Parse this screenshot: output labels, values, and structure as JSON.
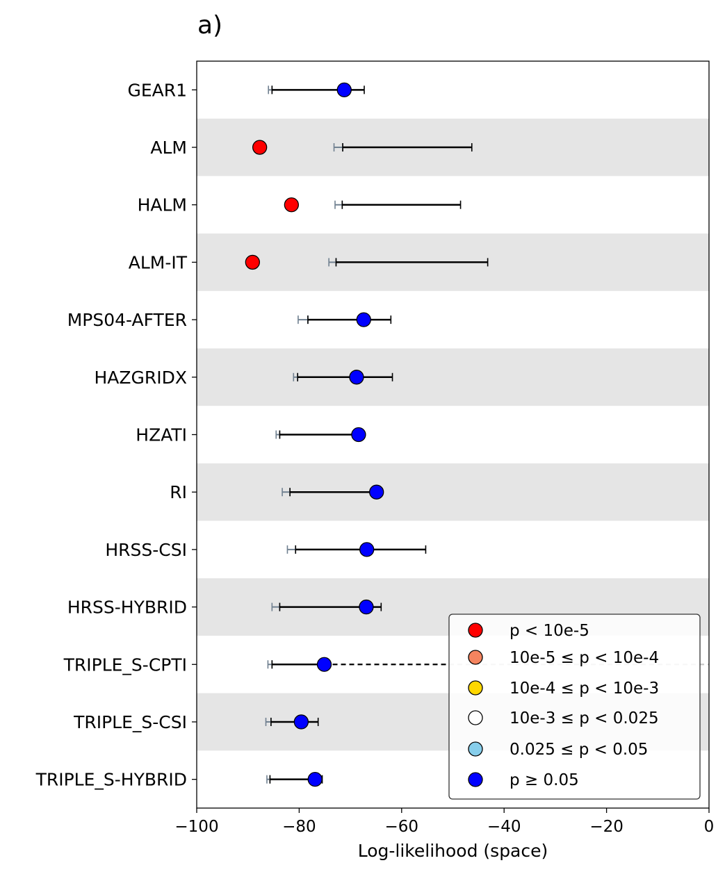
{
  "panel_label": "a)",
  "chart_data": {
    "type": "scatter",
    "xlabel": "Log-likelihood (space)",
    "xlim": [
      -100,
      0
    ],
    "xticks": [
      -100,
      -80,
      -60,
      -40,
      -20,
      0
    ],
    "xtick_labels": [
      "−100",
      "−80",
      "−60",
      "−40",
      "−20",
      "0"
    ],
    "grid": false,
    "alternating_row_shading": "#e5e5e5",
    "legend_position": "lower-right",
    "models": [
      {
        "name": "GEAR1",
        "observed": -71.2,
        "sim_low": -85.3,
        "sim_high": -67.3,
        "lower_bar_start": -86.0,
        "color_class": "p >= 0.05",
        "dashed_extension": false
      },
      {
        "name": "ALM",
        "observed": -87.7,
        "sim_low": -71.5,
        "sim_high": -46.3,
        "lower_bar_start": -73.2,
        "color_class": "p < 10e-5",
        "dashed_extension": false
      },
      {
        "name": "HALM",
        "observed": -81.5,
        "sim_low": -71.6,
        "sim_high": -48.5,
        "lower_bar_start": -73.0,
        "color_class": "p < 10e-5",
        "dashed_extension": false
      },
      {
        "name": "ALM-IT",
        "observed": -89.1,
        "sim_low": -72.8,
        "sim_high": -43.2,
        "lower_bar_start": -74.2,
        "color_class": "p < 10e-5",
        "dashed_extension": false
      },
      {
        "name": "MPS04-AFTER",
        "observed": -67.4,
        "sim_low": -78.3,
        "sim_high": -62.1,
        "lower_bar_start": -80.2,
        "color_class": "p >= 0.05",
        "dashed_extension": false
      },
      {
        "name": "HAZGRIDX",
        "observed": -68.8,
        "sim_low": -80.3,
        "sim_high": -61.8,
        "lower_bar_start": -81.1,
        "color_class": "p >= 0.05",
        "dashed_extension": false
      },
      {
        "name": "HZATI",
        "observed": -68.4,
        "sim_low": -83.8,
        "sim_high": -68.4,
        "lower_bar_start": -84.5,
        "color_class": "p >= 0.05",
        "dashed_extension": false
      },
      {
        "name": "RI",
        "observed": -64.9,
        "sim_low": -81.8,
        "sim_high": -64.9,
        "lower_bar_start": -83.3,
        "color_class": "p >= 0.05",
        "dashed_extension": false
      },
      {
        "name": "HRSS-CSI",
        "observed": -66.8,
        "sim_low": -80.7,
        "sim_high": -55.3,
        "lower_bar_start": -82.3,
        "color_class": "p >= 0.05",
        "dashed_extension": false
      },
      {
        "name": "HRSS-HYBRID",
        "observed": -66.9,
        "sim_low": -83.8,
        "sim_high": -64.0,
        "lower_bar_start": -85.3,
        "color_class": "p >= 0.05",
        "dashed_extension": false
      },
      {
        "name": "TRIPLE_S-CPTI",
        "observed": -75.1,
        "sim_low": -85.3,
        "sim_high": -75.1,
        "lower_bar_start": -86.1,
        "color_class": "p >= 0.05",
        "dashed_extension": true
      },
      {
        "name": "TRIPLE_S-CSI",
        "observed": -79.6,
        "sim_low": -85.5,
        "sim_high": -76.3,
        "lower_bar_start": -86.5,
        "color_class": "p >= 0.05",
        "dashed_extension": false
      },
      {
        "name": "TRIPLE_S-HYBRID",
        "observed": -76.9,
        "sim_low": -85.7,
        "sim_high": -75.5,
        "lower_bar_start": -86.3,
        "color_class": "p >= 0.05",
        "dashed_extension": false
      }
    ],
    "legend": [
      {
        "label": "p < 10e-5",
        "color": "#ff0000"
      },
      {
        "label": "10e-5 ≤ p < 10e-4",
        "color": "#f4845f"
      },
      {
        "label": "10e-4 ≤ p < 10e-3",
        "color": "#ffd700"
      },
      {
        "label": "10e-3 ≤ p < 0.025",
        "color": "#ffffff"
      },
      {
        "label": "0.025 ≤ p < 0.05",
        "color": "#87ceeb"
      },
      {
        "label": "p ≥ 0.05",
        "color": "#0000ff"
      }
    ],
    "colors": {
      "main_bar": "#000000",
      "lower_bar": "#708090",
      "dashed_extension": "#000000",
      "dashed_extension_behind_legend": "#c8c8c8"
    }
  }
}
